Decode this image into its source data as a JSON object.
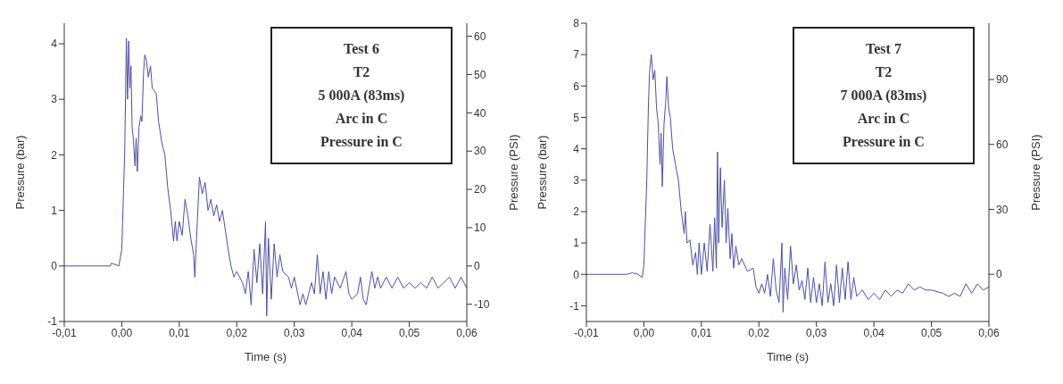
{
  "chart_data": [
    {
      "type": "line",
      "xlabel": "Time (s)",
      "ylabel": "Pressure (bar)",
      "y2label": "Pressure (PSI)",
      "annotations": [
        "Test 6",
        "T2",
        "5 000A (83ms)",
        "Arc in C",
        "Pressure in C"
      ],
      "xlim": [
        -0.01,
        0.06
      ],
      "xticks": [
        {
          "value": -0.01,
          "label": "-0,01"
        },
        {
          "value": 0,
          "label": "0,00"
        },
        {
          "value": 0.01,
          "label": "0,01"
        },
        {
          "value": 0.02,
          "label": "0,02"
        },
        {
          "value": 0.03,
          "label": "0,03"
        },
        {
          "value": 0.04,
          "label": "0,04"
        },
        {
          "value": 0.05,
          "label": "0,05"
        },
        {
          "value": 0.06,
          "label": "0,06"
        }
      ],
      "ylim": [
        -1,
        4.37
      ],
      "yticks": [
        -1,
        0,
        1,
        2,
        3,
        4
      ],
      "y2lim": [
        -14.5,
        63.4
      ],
      "y2ticks": [
        -10,
        0,
        10,
        20,
        30,
        40,
        50,
        60
      ],
      "marker": "none",
      "series": [
        {
          "color": "#4b4fa8",
          "x": [
            -0.01,
            -0.002,
            -0.0018,
            -0.001,
            -0.0005,
            0.0,
            0.0005,
            0.0008,
            0.001,
            0.0012,
            0.0014,
            0.0016,
            0.0018,
            0.002,
            0.0023,
            0.0025,
            0.0027,
            0.003,
            0.0033,
            0.0035,
            0.0038,
            0.004,
            0.0043,
            0.0046,
            0.005,
            0.0053,
            0.006,
            0.0064,
            0.007,
            0.0075,
            0.008,
            0.0085,
            0.009,
            0.0093,
            0.0096,
            0.01,
            0.0105,
            0.011,
            0.0115,
            0.012,
            0.0125,
            0.0127,
            0.013,
            0.0135,
            0.014,
            0.0145,
            0.015,
            0.0155,
            0.016,
            0.0165,
            0.017,
            0.0175,
            0.0185,
            0.019,
            0.0195,
            0.02,
            0.021,
            0.0215,
            0.022,
            0.0225,
            0.023,
            0.0235,
            0.024,
            0.0245,
            0.025,
            0.0252,
            0.0255,
            0.026,
            0.0265,
            0.027,
            0.0275,
            0.028,
            0.029,
            0.0295,
            0.03,
            0.031,
            0.0315,
            0.032,
            0.033,
            0.0335,
            0.034,
            0.0345,
            0.035,
            0.0355,
            0.036,
            0.0365,
            0.037,
            0.038,
            0.039,
            0.0395,
            0.04,
            0.041,
            0.0415,
            0.042,
            0.0425,
            0.043,
            0.0435,
            0.044,
            0.0445,
            0.045,
            0.046,
            0.047,
            0.048,
            0.049,
            0.05,
            0.051,
            0.052,
            0.053,
            0.054,
            0.055,
            0.056,
            0.057,
            0.058,
            0.059,
            0.06
          ],
          "values": [
            0,
            0,
            0.05,
            0.02,
            0,
            0.3,
            2.0,
            4.1,
            3.0,
            4.05,
            3.2,
            3.6,
            2.5,
            2.3,
            1.8,
            2.3,
            1.7,
            2.5,
            2.7,
            2.6,
            3.5,
            3.8,
            3.7,
            3.4,
            3.6,
            3.2,
            3.1,
            2.6,
            2.2,
            2.0,
            1.4,
            1.0,
            0.45,
            0.8,
            0.45,
            0.8,
            0.55,
            1.2,
            0.9,
            0.5,
            0.2,
            -0.2,
            0.5,
            1.6,
            1.3,
            1.5,
            1.0,
            1.2,
            0.9,
            1.1,
            0.8,
            1.0,
            0.3,
            0.0,
            -0.2,
            -0.1,
            -0.3,
            -0.5,
            -0.1,
            -0.7,
            0.3,
            -0.3,
            0.4,
            -0.5,
            0.8,
            -0.9,
            0.5,
            -0.6,
            0.4,
            -0.2,
            0.2,
            -0.1,
            -0.2,
            -0.4,
            -0.2,
            -0.7,
            -0.5,
            -0.7,
            -0.3,
            -0.5,
            0.2,
            -0.5,
            -0.1,
            -0.6,
            -0.1,
            -0.5,
            -0.2,
            -0.4,
            -0.1,
            -0.5,
            -0.6,
            -0.5,
            -0.2,
            -0.6,
            -0.7,
            -0.4,
            -0.1,
            -0.4,
            -0.2,
            -0.4,
            -0.2,
            -0.4,
            -0.2,
            -0.4,
            -0.3,
            -0.4,
            -0.3,
            -0.4,
            -0.2,
            -0.4,
            -0.3,
            -0.2,
            -0.4,
            -0.2,
            -0.4
          ]
        }
      ]
    },
    {
      "type": "line",
      "xlabel": "Time (s)",
      "ylabel": "Pressure (bar)",
      "y2label": "Pressure (PSI)",
      "annotations": [
        "Test 7",
        "T2",
        "7 000A (83ms)",
        "Arc in C",
        "Pressure in C"
      ],
      "xlim": [
        -0.01,
        0.06
      ],
      "xticks": [
        {
          "value": -0.01,
          "label": "-0,01"
        },
        {
          "value": 0,
          "label": "0,00"
        },
        {
          "value": 0.01,
          "label": "0,01"
        },
        {
          "value": 0.02,
          "label": "0,02"
        },
        {
          "value": 0.03,
          "label": "0,03"
        },
        {
          "value": 0.04,
          "label": "0,04"
        },
        {
          "value": 0.05,
          "label": "0,05"
        },
        {
          "value": 0.06,
          "label": "0,06"
        }
      ],
      "ylim": [
        -1.5,
        8
      ],
      "yticks": [
        -1,
        0,
        1,
        2,
        3,
        4,
        5,
        6,
        7,
        8
      ],
      "y2lim": [
        -21.8,
        116
      ],
      "y2ticks": [
        0,
        30,
        60,
        90
      ],
      "marker": "none",
      "series": [
        {
          "color": "#4b4fa8",
          "x": [
            -0.01,
            -0.003,
            -0.002,
            -0.001,
            -0.0003,
            0.0,
            0.0005,
            0.0008,
            0.001,
            0.0013,
            0.0016,
            0.0019,
            0.0022,
            0.0025,
            0.0028,
            0.003,
            0.0032,
            0.0035,
            0.0038,
            0.004,
            0.0043,
            0.0046,
            0.005,
            0.0055,
            0.006,
            0.0065,
            0.007,
            0.0072,
            0.0075,
            0.008,
            0.0085,
            0.009,
            0.0093,
            0.0096,
            0.01,
            0.0105,
            0.011,
            0.0115,
            0.012,
            0.0123,
            0.0126,
            0.0128,
            0.013,
            0.0133,
            0.0136,
            0.014,
            0.0143,
            0.0146,
            0.015,
            0.0153,
            0.0156,
            0.016,
            0.0165,
            0.017,
            0.018,
            0.019,
            0.0195,
            0.02,
            0.0205,
            0.021,
            0.0215,
            0.022,
            0.0225,
            0.023,
            0.0235,
            0.024,
            0.0242,
            0.0245,
            0.025,
            0.0255,
            0.026,
            0.0265,
            0.027,
            0.0275,
            0.028,
            0.0285,
            0.029,
            0.0295,
            0.03,
            0.0305,
            0.031,
            0.0315,
            0.032,
            0.0325,
            0.033,
            0.0335,
            0.034,
            0.0345,
            0.035,
            0.0355,
            0.036,
            0.0365,
            0.037,
            0.038,
            0.039,
            0.04,
            0.041,
            0.042,
            0.043,
            0.044,
            0.045,
            0.046,
            0.047,
            0.048,
            0.049,
            0.05,
            0.052,
            0.053,
            0.054,
            0.055,
            0.056,
            0.057,
            0.058,
            0.059,
            0.06
          ],
          "values": [
            0,
            0,
            0.05,
            0,
            -0.1,
            0.3,
            3.0,
            5.5,
            6.5,
            7.0,
            6.2,
            6.5,
            5.3,
            4.8,
            3.5,
            4.5,
            2.8,
            4.8,
            5.5,
            6.3,
            5.3,
            5.0,
            4.0,
            3.5,
            3.0,
            2.0,
            1.3,
            2.0,
            1.0,
            1.1,
            0.3,
            0.7,
            0.0,
            1.0,
            0.0,
            1.0,
            0.1,
            1.6,
            0.1,
            1.8,
            0.2,
            3.9,
            1.0,
            3.4,
            1.5,
            3.0,
            1.0,
            2.1,
            0.5,
            1.3,
            0.2,
            0.9,
            0.3,
            0.5,
            0.1,
            0.2,
            -0.4,
            -0.6,
            -0.3,
            -0.6,
            0.0,
            -0.7,
            0.5,
            -0.5,
            -0.9,
            1.0,
            -1.2,
            0.2,
            -0.8,
            0.9,
            -0.3,
            0.3,
            -0.5,
            -0.2,
            -0.8,
            0.2,
            -0.9,
            -0.1,
            -0.9,
            -0.3,
            -1.0,
            0.4,
            -0.9,
            -0.3,
            -1.0,
            0.3,
            -0.9,
            0.2,
            -0.8,
            0.4,
            -0.8,
            -0.1,
            -0.7,
            -0.5,
            -0.8,
            -0.6,
            -0.8,
            -0.5,
            -0.7,
            -0.5,
            -0.6,
            -0.3,
            -0.5,
            -0.4,
            -0.5,
            -0.5,
            -0.6,
            -0.7,
            -0.6,
            -0.7,
            -0.3,
            -0.6,
            -0.3,
            -0.5,
            -0.4
          ]
        }
      ]
    }
  ]
}
